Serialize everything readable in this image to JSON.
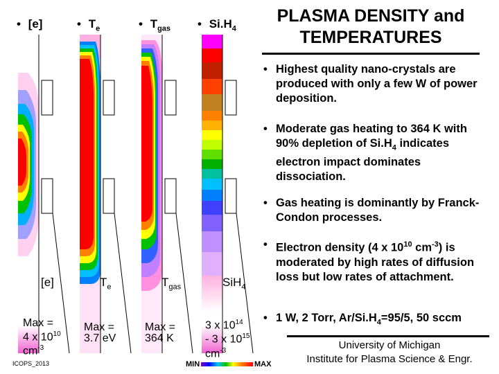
{
  "headers": {
    "e": "[e]",
    "te_main": "T",
    "te_sub": "e",
    "tgas_main": "T",
    "tgas_sub": "gas",
    "sih4_main": "Si.H",
    "sih4_sub": "4"
  },
  "title": {
    "line1": "PLASMA DENSITY and",
    "line2": "TEMPERATURES"
  },
  "points": {
    "p1": "Highest quality nano-crystals are produced with only a few W of power deposition.",
    "p2_a": "Moderate gas heating to 364 K with 90% depletion of Si.H",
    "p2_sub": "4",
    "p2_b": " indicates electron impact dominates dissociation.",
    "p3": "Gas heating is dominantly by Franck-Condon processes.",
    "p4_a": "Electron density (4 x 10",
    "p4_sup1": "10",
    "p4_b": " cm",
    "p4_sup2": "-3",
    "p4_c": ") is moderated by high rates of diffusion loss but low rates of attachment.",
    "p5_a": "1 W, 2 Torr, Ar/Si.H",
    "p5_sub": "4",
    "p5_b": "=95/5, 50 sccm"
  },
  "plot_labels": {
    "e": "[e]",
    "te_main": "T",
    "te_sub": "e",
    "tgas_main": "T",
    "tgas_sub": "gas",
    "sih4_main": "SiH",
    "sih4_sub": "4"
  },
  "max_labels": {
    "e_l1": "Max =",
    "e_l2a": "4 x 10",
    "e_l2sup": "10",
    "e_l3a": "cm",
    "e_l3sup": "-3",
    "te_l1": "Max =",
    "te_l2": "3.7 eV",
    "tgas_l1": "Max =",
    "tgas_l2": "364 K",
    "s_l1a": "3 x 10",
    "s_l1sup": "14",
    "s_l2a": "- 3 x 10",
    "s_l2sup": "15",
    "s_l3a": "cm",
    "s_l3sup": "-3"
  },
  "scale": {
    "min": "MIN",
    "max": "MAX"
  },
  "footer": {
    "line1": "University of Michigan",
    "line2": "Institute for Plasma Science & Engr."
  },
  "conference": "ICOPS_2013"
}
